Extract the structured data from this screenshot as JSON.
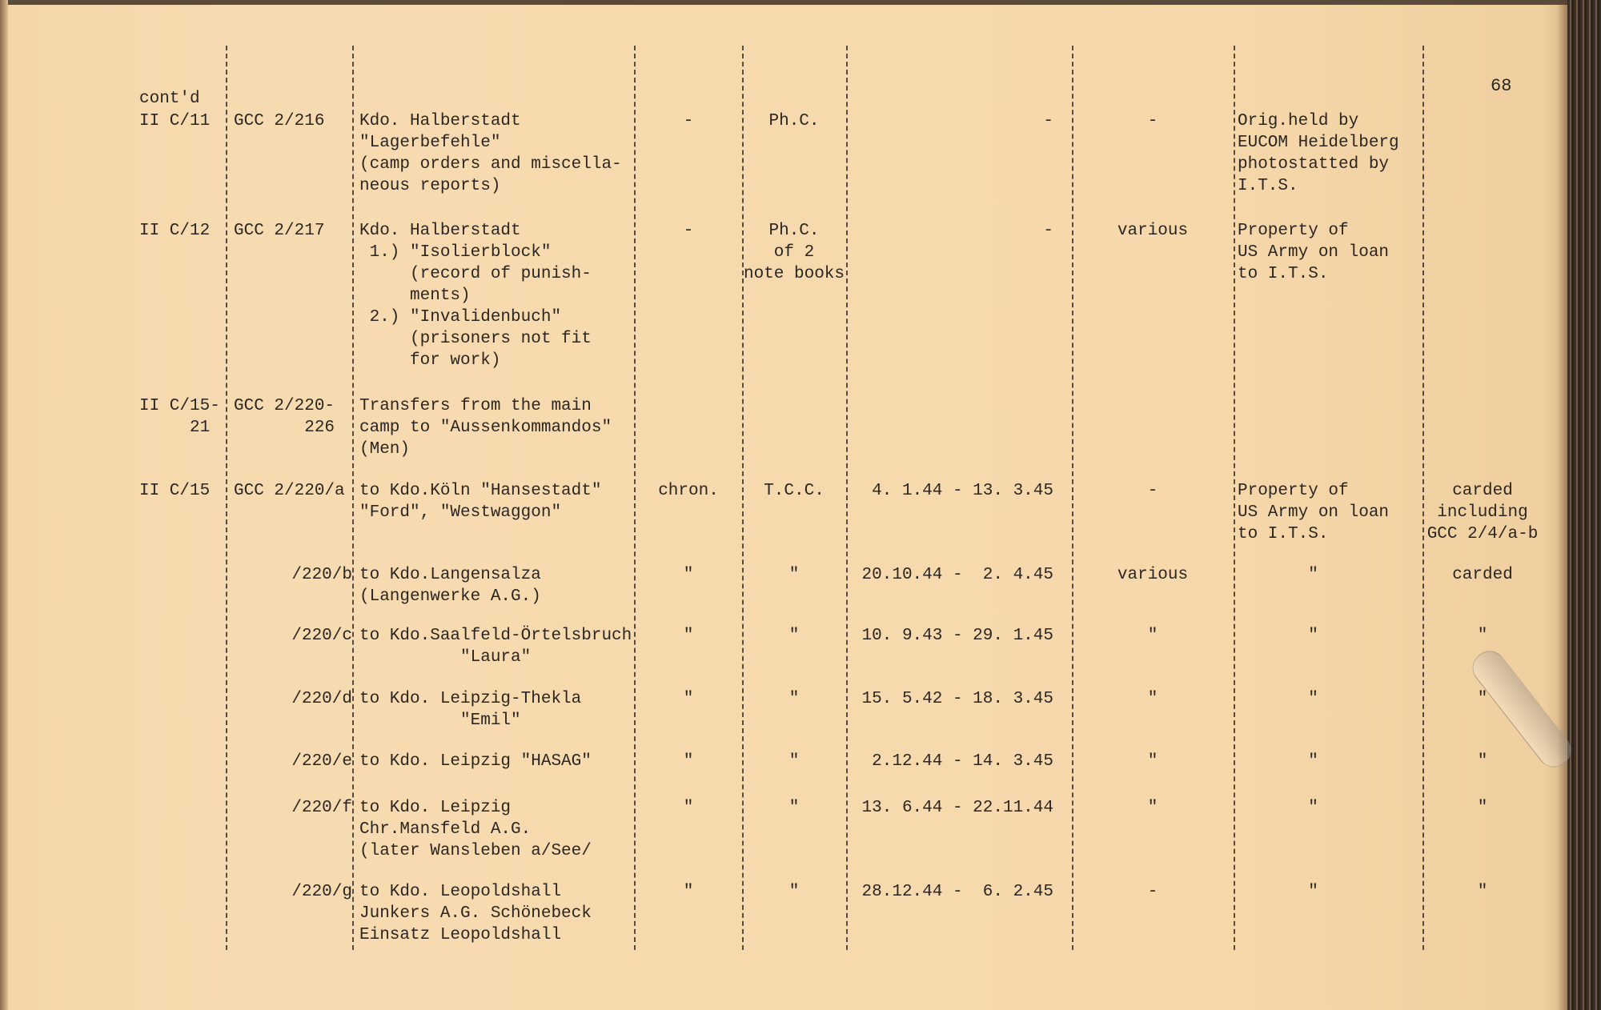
{
  "page_number": "68",
  "continued_label": "cont'd",
  "rows": [
    {
      "id": "II C/11",
      "ref": "GCC 2/216",
      "desc": [
        "Kdo. Halberstadt",
        "\"Lagerbefehle\"",
        "(camp orders and miscella-",
        "neous reports)"
      ],
      "c4": "-",
      "c5": [
        "Ph.C."
      ],
      "dates": "-",
      "c7": "-",
      "c8": [
        "Orig.held by",
        "EUCOM Heidelberg",
        "photostatted by",
        "I.T.S."
      ],
      "c9": []
    },
    {
      "id": "II C/12",
      "ref": "GCC 2/217",
      "desc": [
        "Kdo. Halberstadt",
        " 1.) \"Isolierblock\"",
        "     (record of punish-",
        "     ments)",
        " 2.) \"Invalidenbuch\"",
        "     (prisoners not fit",
        "     for work)"
      ],
      "c4": "-",
      "c5": [
        "Ph.C.",
        "of 2",
        "note books"
      ],
      "dates": "-",
      "c7": "various",
      "c8": [
        "Property of",
        "US Army on loan",
        "to I.T.S."
      ],
      "c9": []
    },
    {
      "id": "II C/15-\n     21",
      "ref": "GCC 2/220-\n       226",
      "desc": [
        "Transfers from the main",
        "camp to \"Aussenkommandos\"",
        "(Men)"
      ],
      "c4": "",
      "c5": [],
      "dates": "",
      "c7": "",
      "c8": [],
      "c9": []
    },
    {
      "id": "II C/15",
      "ref": "GCC 2/220/a",
      "desc": [
        "to Kdo.Köln \"Hansestadt\"",
        "\"Ford\", \"Westwaggon\""
      ],
      "c4": "chron.",
      "c5": [
        "T.C.C."
      ],
      "dates": "4. 1.44 - 13. 3.45",
      "c7": "-",
      "c8": [
        "Property of",
        "US Army on loan",
        "to I.T.S."
      ],
      "c9": [
        "carded",
        "including",
        "GCC 2/4/a-b"
      ]
    },
    {
      "id": "",
      "ref": "/220/b",
      "desc": [
        "to Kdo.Langensalza",
        "(Langenwerke A.G.)"
      ],
      "c4": "\"",
      "c5": [
        "\""
      ],
      "dates": "20.10.44 -  2. 4.45",
      "c7": "various",
      "c8": [
        "       \""
      ],
      "c9": [
        "carded"
      ]
    },
    {
      "id": "",
      "ref": "/220/c",
      "desc": [
        "to Kdo.Saalfeld-Örtelsbruch",
        "          \"Laura\""
      ],
      "c4": "\"",
      "c5": [
        "\""
      ],
      "dates": "10. 9.43 - 29. 1.45",
      "c7": "\"",
      "c8": [
        "       \""
      ],
      "c9": [
        "\""
      ]
    },
    {
      "id": "",
      "ref": "/220/d",
      "desc": [
        "to Kdo. Leipzig-Thekla",
        "          \"Emil\""
      ],
      "c4": "\"",
      "c5": [
        "\""
      ],
      "dates": "15. 5.42 - 18. 3.45",
      "c7": "\"",
      "c8": [
        "       \""
      ],
      "c9": [
        "\""
      ]
    },
    {
      "id": "",
      "ref": "/220/e",
      "desc": [
        "to Kdo. Leipzig \"HASAG\""
      ],
      "c4": "\"",
      "c5": [
        "\""
      ],
      "dates": "2.12.44 - 14. 3.45",
      "c7": "\"",
      "c8": [
        "       \""
      ],
      "c9": [
        "\""
      ]
    },
    {
      "id": "",
      "ref": "/220/f",
      "desc": [
        "to Kdo. Leipzig",
        "Chr.Mansfeld A.G.",
        "(later Wansleben a/See/"
      ],
      "c4": "\"",
      "c5": [
        "\""
      ],
      "dates": "13. 6.44 - 22.11.44",
      "c7": "\"",
      "c8": [
        "       \""
      ],
      "c9": [
        "\""
      ]
    },
    {
      "id": "",
      "ref": "/220/g",
      "desc": [
        "to Kdo. Leopoldshall",
        "Junkers A.G. Schönebeck",
        "Einsatz Leopoldshall"
      ],
      "c4": "\"",
      "c5": [
        "\""
      ],
      "dates": "28.12.44 -  6. 2.45",
      "c7": "-",
      "c8": [
        "       \""
      ],
      "c9": [
        "\""
      ]
    }
  ]
}
